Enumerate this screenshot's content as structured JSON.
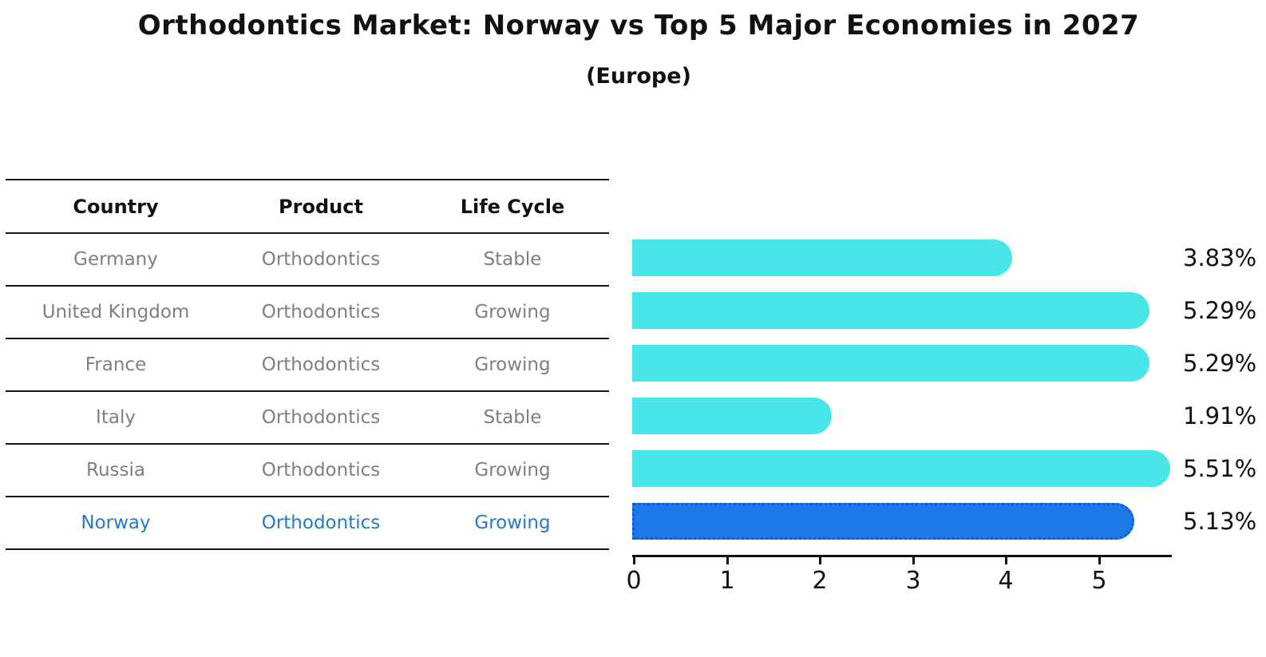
{
  "title": "Orthodontics Market: Norway vs Top 5 Major Economies in 2027",
  "subtitle": "(Europe)",
  "table": {
    "headers": [
      "Country",
      "Product",
      "Life Cycle"
    ],
    "rows": [
      {
        "country": "Germany",
        "product": "Orthodontics",
        "life_cycle": "Stable",
        "highlight": false
      },
      {
        "country": "United Kingdom",
        "product": "Orthodontics",
        "life_cycle": "Growing",
        "highlight": false
      },
      {
        "country": "France",
        "product": "Orthodontics",
        "life_cycle": "Growing",
        "highlight": false
      },
      {
        "country": "Italy",
        "product": "Orthodontics",
        "life_cycle": "Stable",
        "highlight": false
      },
      {
        "country": "Russia",
        "product": "Orthodontics",
        "life_cycle": "Growing",
        "highlight": false
      },
      {
        "country": "Norway",
        "product": "Orthodontics",
        "life_cycle": "Growing",
        "highlight": true
      }
    ]
  },
  "chart_data": {
    "type": "bar",
    "orientation": "horizontal",
    "categories": [
      "Germany",
      "United Kingdom",
      "France",
      "Italy",
      "Russia",
      "Norway"
    ],
    "values": [
      3.83,
      5.29,
      5.29,
      1.91,
      5.51,
      5.13
    ],
    "value_labels": [
      "3.83%",
      "5.29%",
      "5.29%",
      "1.91%",
      "5.51%",
      "5.13%"
    ],
    "title": "Orthodontics Market: Norway vs Top 5 Major Economies in 2027",
    "subtitle": "(Europe)",
    "xlabel": "",
    "ylabel": "",
    "x_tick_labels": [
      "0",
      "1",
      "2",
      "3",
      "4",
      "5"
    ],
    "xlim": [
      0,
      5.8
    ],
    "grid": false,
    "legend": false,
    "bar_color": "#48e5e9",
    "highlight_color": "#1e79e8",
    "highlight_index": 5,
    "highlight_text_color": "#2478d4",
    "text_color_muted": "#7f7f7f"
  }
}
